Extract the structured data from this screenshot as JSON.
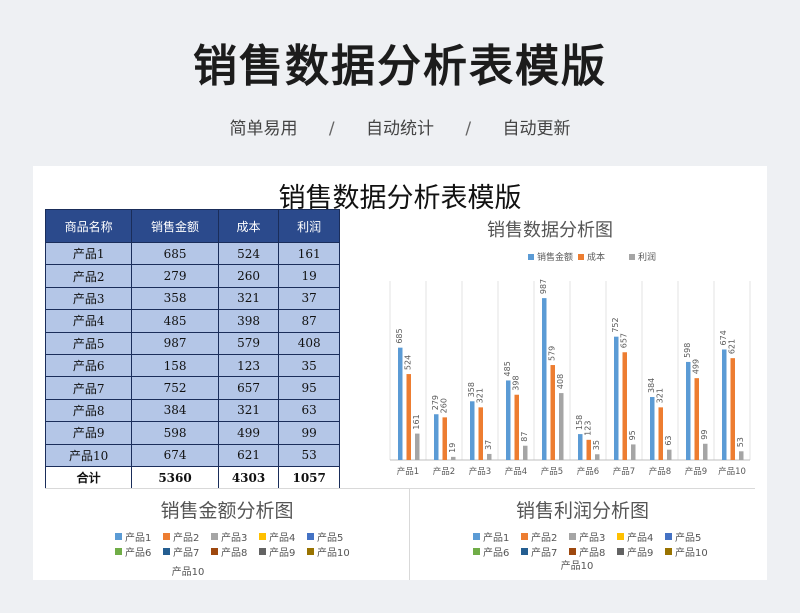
{
  "hero": {
    "title": "销售数据分析表模版",
    "subtitle_parts": [
      "简单易用",
      "/",
      "自动统计",
      "/",
      "自动更新"
    ]
  },
  "sheet": {
    "title": "销售数据分析表模版",
    "table": {
      "headers": [
        "商品名称",
        "销售金额",
        "成本",
        "利润"
      ],
      "rows": [
        [
          "产品1",
          "685",
          "524",
          "161"
        ],
        [
          "产品2",
          "279",
          "260",
          "19"
        ],
        [
          "产品3",
          "358",
          "321",
          "37"
        ],
        [
          "产品4",
          "485",
          "398",
          "87"
        ],
        [
          "产品5",
          "987",
          "579",
          "408"
        ],
        [
          "产品6",
          "158",
          "123",
          "35"
        ],
        [
          "产品7",
          "752",
          "657",
          "95"
        ],
        [
          "产品8",
          "384",
          "321",
          "63"
        ],
        [
          "产品9",
          "598",
          "499",
          "99"
        ],
        [
          "产品10",
          "674",
          "621",
          "53"
        ]
      ],
      "total": [
        "合计",
        "5360",
        "4303",
        "1057"
      ]
    }
  },
  "colors": {
    "sales": "#5b9bd5",
    "cost": "#ed7d31",
    "profit": "#a5a5a5",
    "header_bg": "#2b4a8c",
    "cell_bg": "#b4c6e7",
    "pie_palette": [
      "#5b9bd5",
      "#ed7d31",
      "#a5a5a5",
      "#ffc000",
      "#4472c4",
      "#70ad47",
      "#255e91",
      "#9e480e",
      "#636363",
      "#997300"
    ]
  },
  "chart_data": [
    {
      "type": "bar",
      "title": "销售数据分析图",
      "categories": [
        "产品1",
        "产品2",
        "产品3",
        "产品4",
        "产品5",
        "产品6",
        "产品7",
        "产品8",
        "产品9",
        "产品10"
      ],
      "series": [
        {
          "name": "销售金额",
          "values": [
            685,
            279,
            358,
            485,
            987,
            158,
            752,
            384,
            598,
            674
          ]
        },
        {
          "name": "成本",
          "values": [
            524,
            260,
            321,
            398,
            579,
            123,
            657,
            321,
            499,
            621
          ]
        },
        {
          "name": "利润",
          "values": [
            161,
            19,
            37,
            87,
            408,
            35,
            95,
            63,
            99,
            53
          ]
        }
      ],
      "ylim": [
        0,
        1000
      ],
      "legend": "top",
      "grid": "vertical separators",
      "data_labels": true
    },
    {
      "type": "pie",
      "title": "销售金额分析图",
      "legend_labels": [
        "产品1",
        "产品2",
        "产品3",
        "产品4",
        "产品5",
        "产品6",
        "产品7",
        "产品8",
        "产品9",
        "产品10"
      ],
      "legend": "top",
      "partial_label": "产品10"
    },
    {
      "type": "pie",
      "title": "销售利润分析图",
      "legend_labels": [
        "产品1",
        "产品2",
        "产品3",
        "产品4",
        "产品5",
        "产品6",
        "产品7",
        "产品8",
        "产品9",
        "产品10"
      ],
      "legend": "top",
      "partial_label": "产品10"
    }
  ]
}
